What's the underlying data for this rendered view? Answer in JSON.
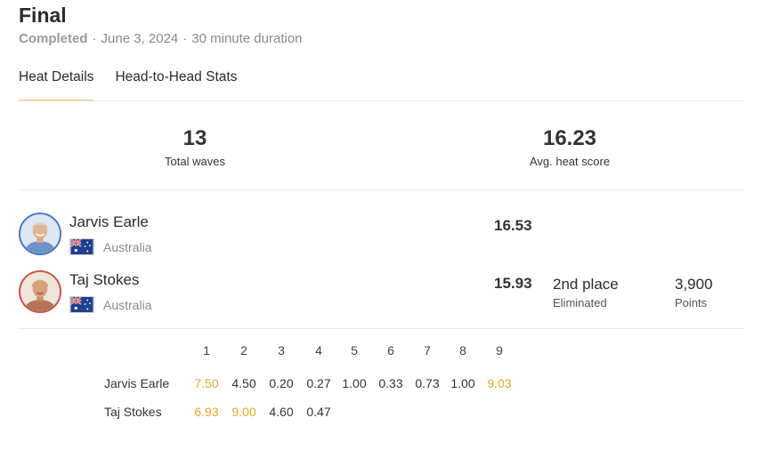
{
  "heat": {
    "title": "Final",
    "status": "Completed",
    "date": "June 3, 2024",
    "duration": "30 minute duration",
    "separator": "·"
  },
  "tabs": [
    {
      "label": "Heat Details",
      "active": true
    },
    {
      "label": "Head-to-Head Stats",
      "active": false
    }
  ],
  "stats": {
    "total_waves": {
      "value": "13",
      "label": "Total waves"
    },
    "avg_score": {
      "value": "16.23",
      "label": "Avg. heat score"
    }
  },
  "surfers": [
    {
      "name": "Jarvis Earle",
      "country": "Australia",
      "score": "16.53",
      "avatar_border": "#4a78c2",
      "place": "",
      "result": "",
      "points": "",
      "points_label": ""
    },
    {
      "name": "Taj Stokes",
      "country": "Australia",
      "score": "15.93",
      "avatar_border": "#c85450",
      "place": "2nd place",
      "result": "Eliminated",
      "points": "3,900",
      "points_label": "Points"
    }
  ],
  "wave_scores": {
    "headers": [
      "1",
      "2",
      "3",
      "4",
      "5",
      "6",
      "7",
      "8",
      "9"
    ],
    "highlight_color": "#e6a82a",
    "rows": [
      {
        "name": "Jarvis Earle",
        "scores": [
          "7.50",
          "4.50",
          "0.20",
          "0.27",
          "1.00",
          "0.33",
          "0.73",
          "1.00",
          "9.03"
        ],
        "counting": [
          0,
          8
        ]
      },
      {
        "name": "Taj Stokes",
        "scores": [
          "6.93",
          "9.00",
          "4.60",
          "0.47"
        ],
        "counting": [
          0,
          1
        ]
      }
    ]
  },
  "icons": {
    "avatar": "surfer-portrait-icon",
    "flag": "australia-flag-icon"
  }
}
